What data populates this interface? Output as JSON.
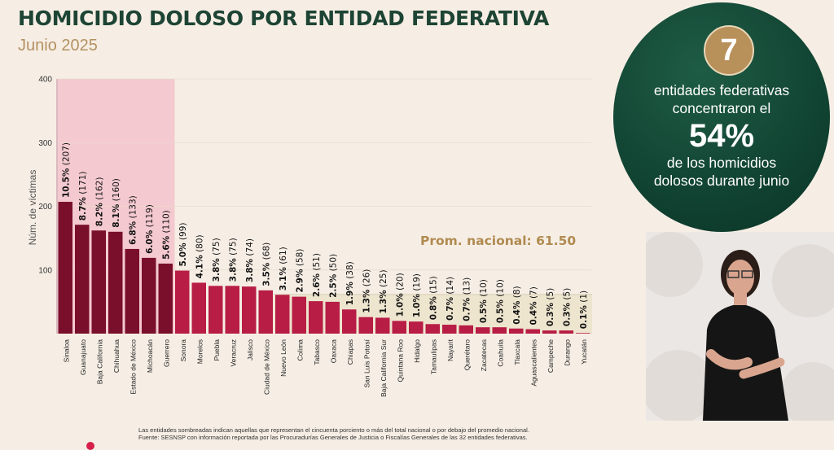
{
  "header": {
    "title": "HOMICIDIO DOLOSO POR ENTIDAD FEDERATIVA",
    "subtitle": "Junio 2025"
  },
  "callout": {
    "number": "7",
    "line1": "entidades federativas",
    "line2": "concentraron el",
    "percent": "54%",
    "line3": "de los homicidios",
    "line4": "dolosos durante junio"
  },
  "chart_data": {
    "type": "bar",
    "ylabel": "Núm. de víctimas",
    "ylim": [
      0,
      400
    ],
    "yticks": [
      100,
      200,
      300,
      400
    ],
    "average": 61.5,
    "average_label": "Prom. nacional: 61.50",
    "highlighted_count": 7,
    "categories": [
      "Sinaloa",
      "Guanajuato",
      "Baja California",
      "Chihuahua",
      "Estado de México",
      "Michoacán",
      "Guerrero",
      "Sonora",
      "Morelos",
      "Puebla",
      "Veracruz",
      "Jalisco",
      "Ciudad de México",
      "Nuevo León",
      "Colima",
      "Tabasco",
      "Oaxaca",
      "Chiapas",
      "San Luis Potosí",
      "Baja California Sur",
      "Quintana Roo",
      "Hidalgo",
      "Tamaulipas",
      "Nayarit",
      "Querétaro",
      "Zacatecas",
      "Coahuila",
      "Tlaxcala",
      "Aguascalientes",
      "Campeche",
      "Durango",
      "Yucatán"
    ],
    "values": [
      207,
      171,
      162,
      160,
      133,
      119,
      110,
      99,
      80,
      75,
      75,
      74,
      68,
      61,
      58,
      51,
      50,
      38,
      26,
      25,
      20,
      19,
      15,
      14,
      13,
      10,
      10,
      8,
      7,
      5,
      5,
      1
    ],
    "percents": [
      "10.5%",
      "8.7%",
      "8.2%",
      "8.1%",
      "6.8%",
      "6.0%",
      "5.6%",
      "5.0%",
      "4.1%",
      "3.8%",
      "3.8%",
      "3.8%",
      "3.5%",
      "3.1%",
      "2.9%",
      "2.6%",
      "2.5%",
      "1.9%",
      "1.3%",
      "1.3%",
      "1.0%",
      "1.0%",
      "0.8%",
      "0.7%",
      "0.7%",
      "0.5%",
      "0.5%",
      "0.4%",
      "0.4%",
      "0.3%",
      "0.3%",
      "0.1%"
    ],
    "counts": [
      "(207)",
      "(171)",
      "(162)",
      "(160)",
      "(133)",
      "(119)",
      "(110)",
      "(99)",
      "(80)",
      "(75)",
      "(75)",
      "(74)",
      "(68)",
      "(61)",
      "(58)",
      "(51)",
      "(50)",
      "(38)",
      "(26)",
      "(25)",
      "(20)",
      "(19)",
      "(15)",
      "(14)",
      "(13)",
      "(10)",
      "(10)",
      "(8)",
      "(7)",
      "(5)",
      "(5)",
      "(1)"
    ]
  },
  "notes": {
    "line1": "Las entidades sombreadas indican aquellas que representan el cincuenta porciento o más del total nacional o por debajo del promedio nacional.",
    "line2": "Fuente: SESNSP con información reportada por las Procuradurías Generales de Justicia o Fiscalías Generales de las 32 entidades federativas."
  },
  "colors": {
    "title": "#1d4434",
    "subtitle": "#b59161",
    "bar_top": "#7a0f2b",
    "bar_rest": "#b81d45",
    "highlight_bg": "#f3c2cc",
    "below_avg_bg": "#eee5cf",
    "avg_label": "#b08a50"
  }
}
